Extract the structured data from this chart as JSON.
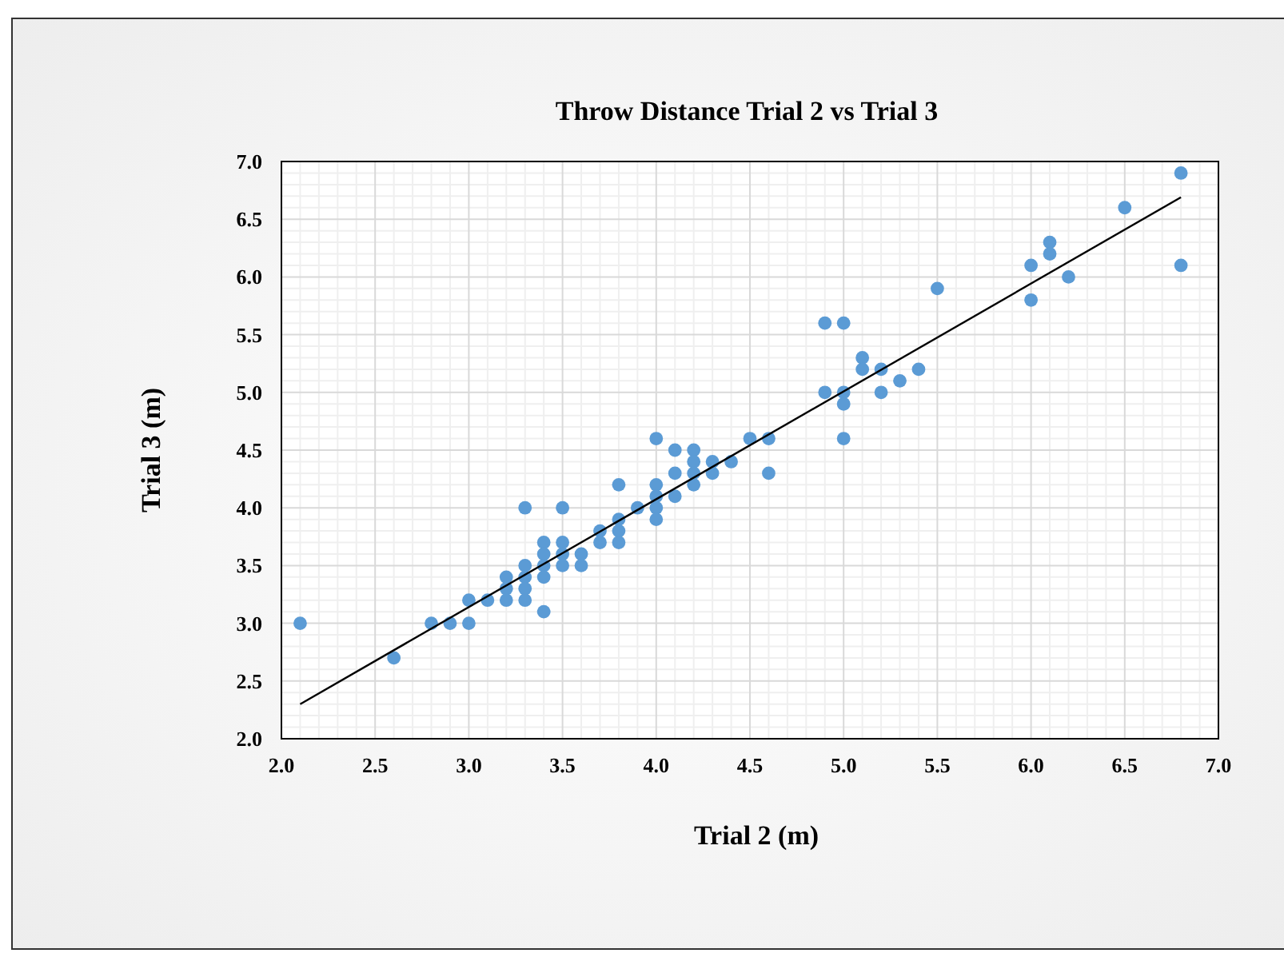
{
  "chart_data": {
    "type": "scatter",
    "title": "Throw Distance Trial 2 vs Trial 3",
    "xlabel": "Trial 2 (m)",
    "ylabel": "Trial 3 (m)",
    "xlim": [
      2.0,
      7.0
    ],
    "xticks": [
      {
        "value": 2.0,
        "label": "2.0"
      },
      {
        "value": 2.5,
        "label": "2.5"
      },
      {
        "value": 3.0,
        "label": "3.0"
      },
      {
        "value": 3.5,
        "label": "3.5"
      },
      {
        "value": 4.0,
        "label": "4.0"
      },
      {
        "value": 4.5,
        "label": "4.5"
      },
      {
        "value": 5.0,
        "label": "5.0"
      },
      {
        "value": 5.5,
        "label": "5.5"
      },
      {
        "value": 6.0,
        "label": "6.0"
      },
      {
        "value": 6.5,
        "label": "6.5"
      },
      {
        "value": 7.0,
        "label": "7.0"
      }
    ],
    "ylim": [
      2.0,
      7.0
    ],
    "yticks": [
      {
        "value": 2.0,
        "label": "2.0"
      },
      {
        "value": 2.5,
        "label": "2.5"
      },
      {
        "value": 3.0,
        "label": "3.0"
      },
      {
        "value": 3.5,
        "label": "3.5"
      },
      {
        "value": 4.0,
        "label": "4.0"
      },
      {
        "value": 4.5,
        "label": "4.5"
      },
      {
        "value": 5.0,
        "label": "5.0"
      },
      {
        "value": 5.5,
        "label": "5.5"
      },
      {
        "value": 6.0,
        "label": "6.0"
      },
      {
        "value": 6.5,
        "label": "6.5"
      },
      {
        "value": 7.0,
        "label": "7.0"
      }
    ],
    "grid": true,
    "marker": "circle",
    "series": [
      {
        "color": "#5b9bd5",
        "x": [
          2.1,
          2.6,
          2.8,
          2.9,
          3.0,
          3.0,
          3.1,
          3.2,
          3.2,
          3.2,
          3.3,
          3.3,
          3.3,
          3.3,
          3.3,
          3.4,
          3.4,
          3.4,
          3.4,
          3.4,
          3.5,
          3.5,
          3.5,
          3.5,
          3.6,
          3.6,
          3.7,
          3.7,
          3.8,
          3.8,
          3.8,
          3.8,
          3.9,
          4.0,
          4.0,
          4.0,
          4.0,
          4.0,
          4.1,
          4.1,
          4.1,
          4.2,
          4.2,
          4.2,
          4.2,
          4.3,
          4.3,
          4.4,
          4.5,
          4.6,
          4.6,
          4.9,
          4.9,
          5.0,
          5.0,
          5.0,
          5.0,
          5.1,
          5.1,
          5.2,
          5.2,
          5.3,
          5.4,
          5.5,
          6.0,
          6.0,
          6.1,
          6.1,
          6.2,
          6.5,
          6.8,
          6.8
        ],
        "values": [
          3.0,
          2.7,
          3.0,
          3.0,
          3.0,
          3.2,
          3.2,
          3.4,
          3.3,
          3.2,
          4.0,
          3.5,
          3.4,
          3.3,
          3.2,
          3.7,
          3.6,
          3.5,
          3.4,
          3.1,
          4.0,
          3.7,
          3.6,
          3.5,
          3.6,
          3.5,
          3.8,
          3.7,
          4.2,
          3.9,
          3.8,
          3.7,
          4.0,
          4.6,
          4.2,
          4.1,
          4.0,
          3.9,
          4.5,
          4.3,
          4.1,
          4.5,
          4.4,
          4.3,
          4.2,
          4.4,
          4.3,
          4.4,
          4.6,
          4.6,
          4.3,
          5.6,
          5.0,
          5.6,
          5.0,
          4.9,
          4.6,
          5.3,
          5.2,
          5.2,
          5.0,
          5.1,
          5.2,
          5.9,
          6.1,
          5.8,
          6.3,
          6.2,
          6.0,
          6.6,
          6.9,
          6.1
        ]
      },
      {
        "type": "line",
        "color": "#000000",
        "marker": "none",
        "x": [
          2.1,
          6.8
        ],
        "values": [
          2.3,
          6.69
        ]
      }
    ]
  }
}
